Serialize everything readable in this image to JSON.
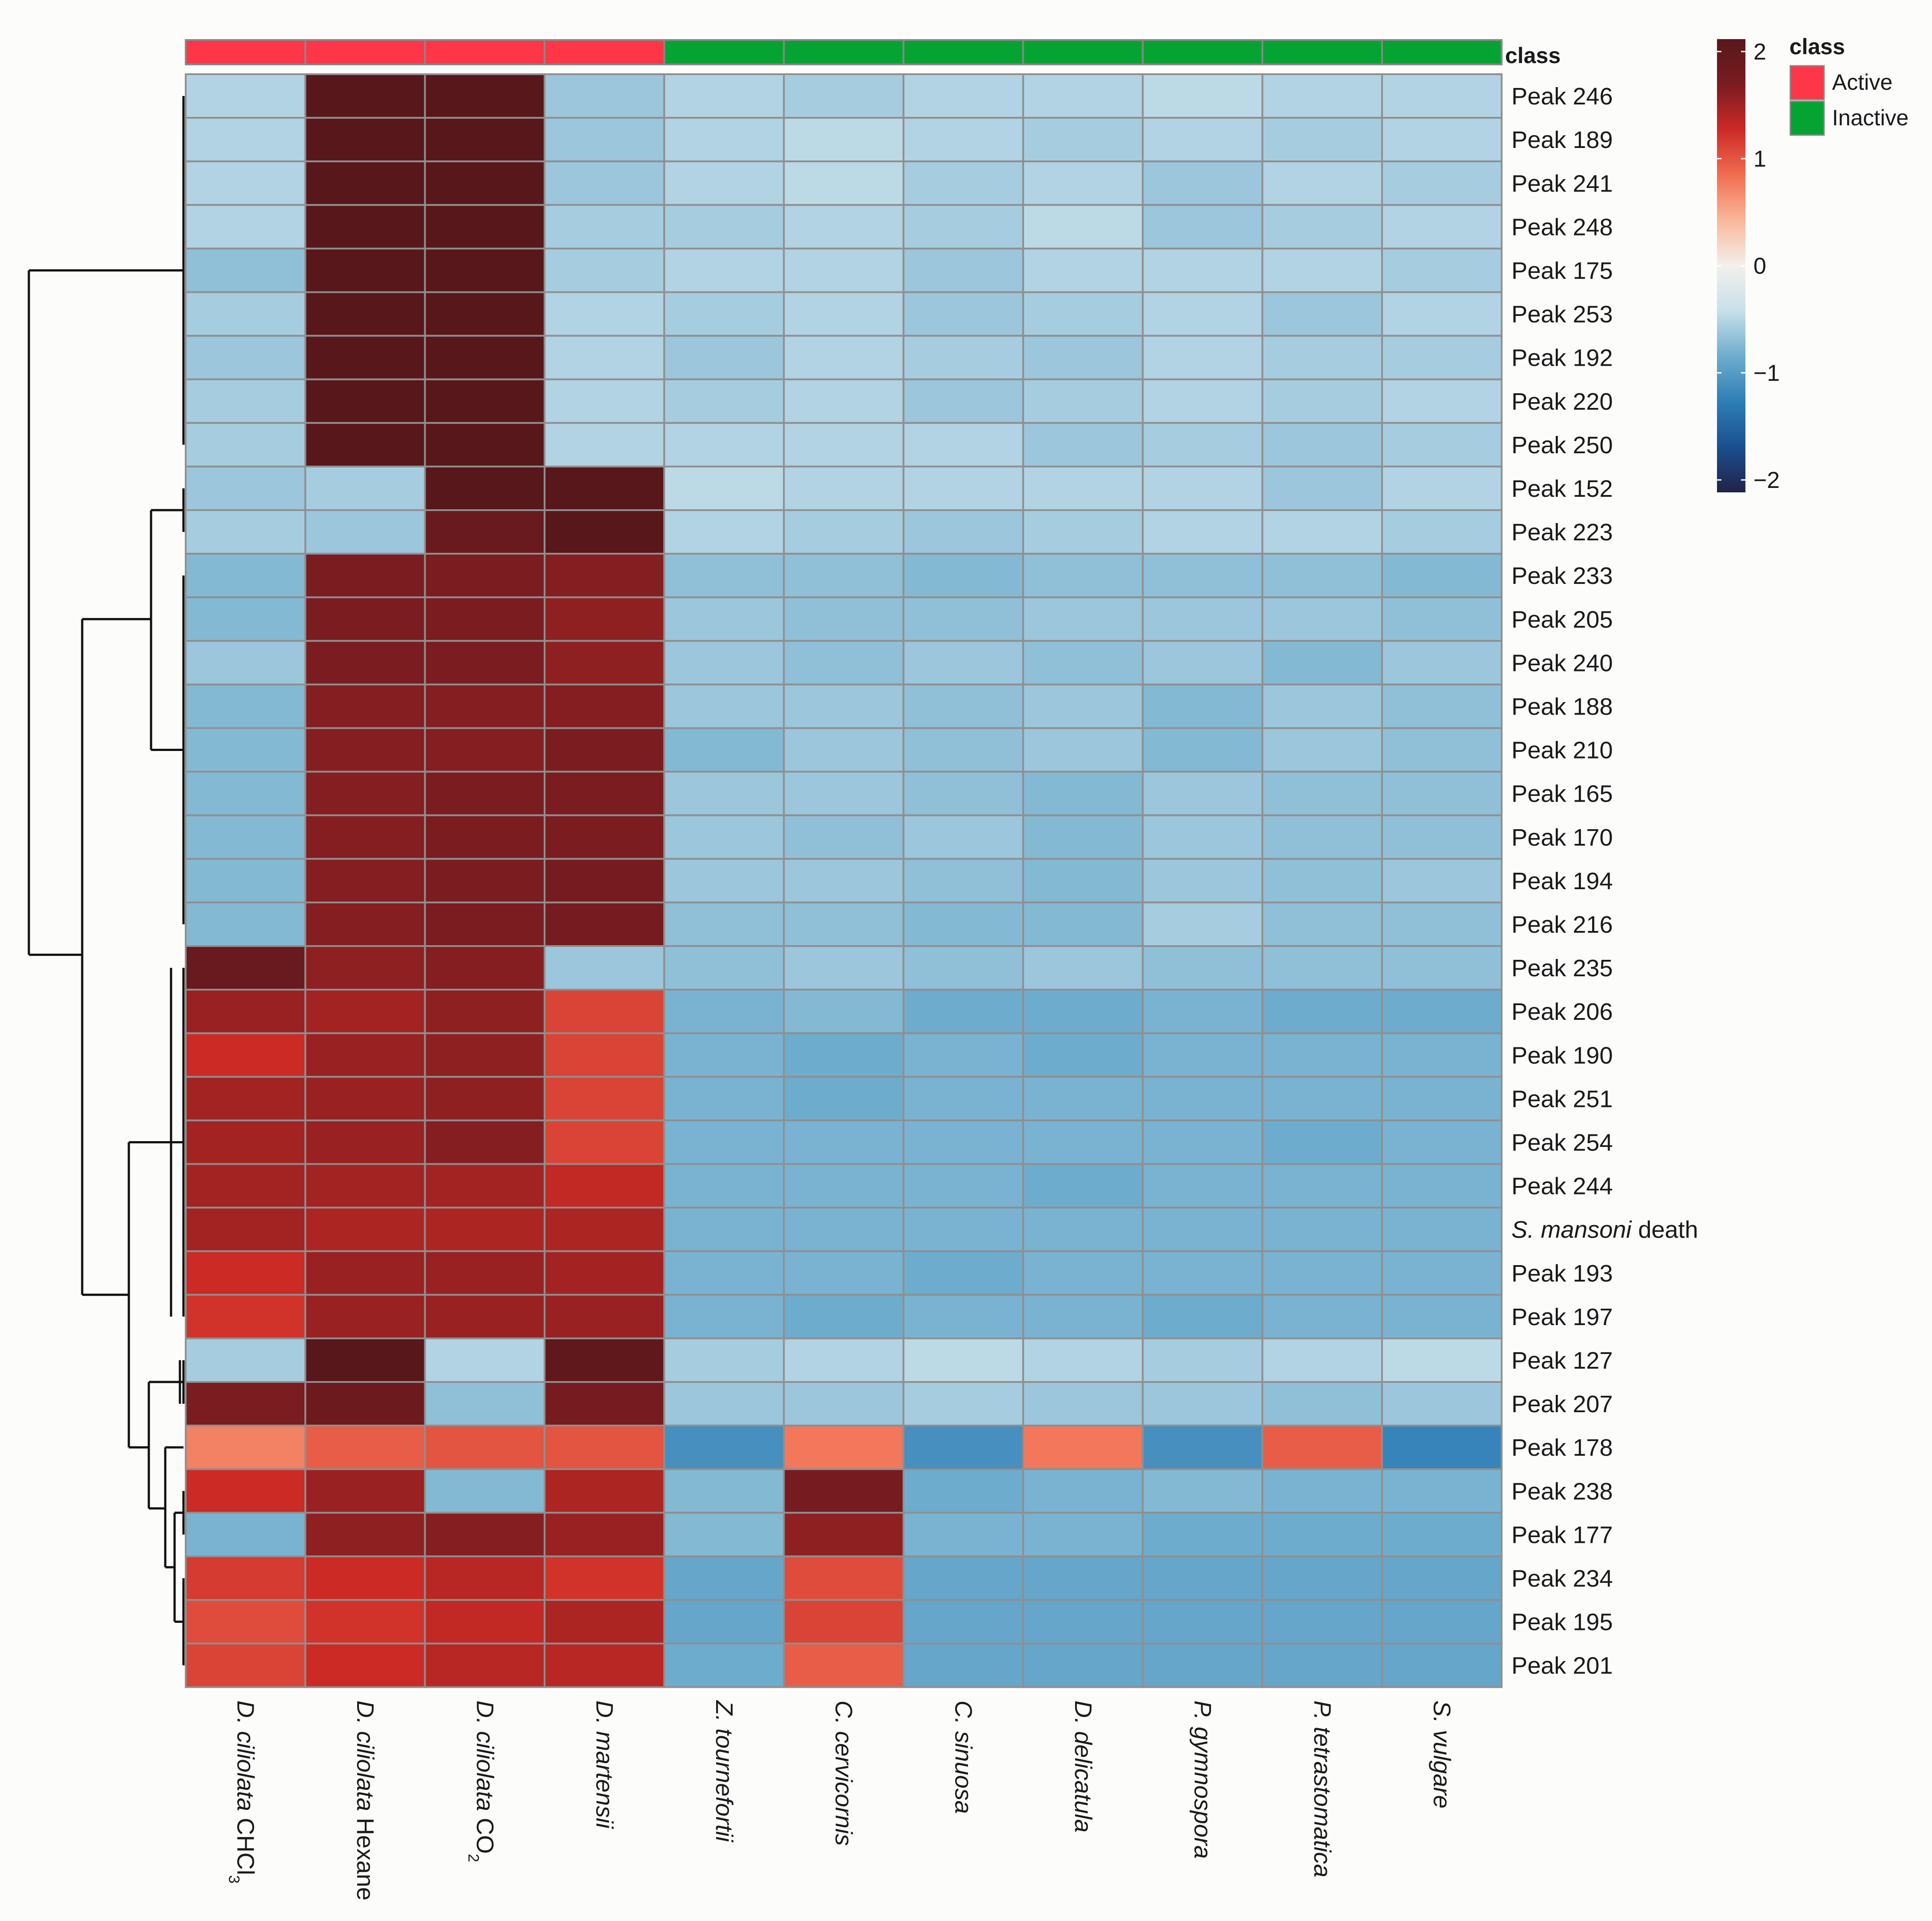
{
  "chart_data": {
    "type": "heatmap",
    "title": "",
    "class_row_label": "class",
    "class_legend": {
      "title": "class",
      "entries": [
        {
          "label": "Active",
          "color": "#ff3548"
        },
        {
          "label": "Inactive",
          "color": "#05a432"
        }
      ]
    },
    "color_scale": {
      "min": -2,
      "max": 2,
      "ticks": [
        {
          "value": 2,
          "label": "2"
        },
        {
          "value": 1,
          "label": "1"
        },
        {
          "value": 0,
          "label": "0"
        },
        {
          "value": -1,
          "label": "−1"
        },
        {
          "value": -2,
          "label": "−2"
        }
      ],
      "colors": [
        "#212247",
        "#1b4f90",
        "#2e7eb6",
        "#6eaccd",
        "#c7e0ea",
        "#f3f0ec",
        "#f9b89a",
        "#f16e52",
        "#cc2a25",
        "#7a1c20",
        "#58171b"
      ]
    },
    "columns": [
      {
        "parts": [
          {
            "text": "D. ciliolata",
            "italic": true
          },
          {
            "text": " CHCl",
            "italic": false
          },
          {
            "text": "3",
            "italic": false,
            "sub": true
          }
        ],
        "class": "Active"
      },
      {
        "parts": [
          {
            "text": "D. ciliolata",
            "italic": true
          },
          {
            "text": " Hexane",
            "italic": false
          }
        ],
        "class": "Active"
      },
      {
        "parts": [
          {
            "text": "D. ciliolata",
            "italic": true
          },
          {
            "text": " CO",
            "italic": false
          },
          {
            "text": "2",
            "italic": false,
            "sub": true
          }
        ],
        "class": "Active"
      },
      {
        "parts": [
          {
            "text": "D. martensii",
            "italic": true
          }
        ],
        "class": "Active"
      },
      {
        "parts": [
          {
            "text": "Z. tournefortii",
            "italic": true
          }
        ],
        "class": "Inactive"
      },
      {
        "parts": [
          {
            "text": "C. cervicornis",
            "italic": true
          }
        ],
        "class": "Inactive"
      },
      {
        "parts": [
          {
            "text": "C. sinuosa",
            "italic": true
          }
        ],
        "class": "Inactive"
      },
      {
        "parts": [
          {
            "text": "D. delicatula",
            "italic": true
          }
        ],
        "class": "Inactive"
      },
      {
        "parts": [
          {
            "text": "P. gymnospora",
            "italic": true
          }
        ],
        "class": "Inactive"
      },
      {
        "parts": [
          {
            "text": "P. tetrastomatica",
            "italic": true
          }
        ],
        "class": "Inactive"
      },
      {
        "parts": [
          {
            "text": "S. vulgare",
            "italic": true
          }
        ],
        "class": "Inactive"
      }
    ],
    "rows": [
      {
        "parts": [
          {
            "text": "Peak 246"
          }
        ],
        "values": [
          -0.5,
          2.0,
          2.2,
          -0.6,
          -0.5,
          -0.55,
          -0.5,
          -0.5,
          -0.45,
          -0.5,
          -0.5
        ]
      },
      {
        "parts": [
          {
            "text": "Peak 189"
          }
        ],
        "values": [
          -0.5,
          2.0,
          2.2,
          -0.6,
          -0.5,
          -0.45,
          -0.5,
          -0.55,
          -0.5,
          -0.55,
          -0.5
        ]
      },
      {
        "parts": [
          {
            "text": "Peak 241"
          }
        ],
        "values": [
          -0.5,
          2.0,
          2.2,
          -0.6,
          -0.5,
          -0.45,
          -0.55,
          -0.5,
          -0.6,
          -0.5,
          -0.55
        ]
      },
      {
        "parts": [
          {
            "text": "Peak 248"
          }
        ],
        "values": [
          -0.5,
          2.0,
          2.2,
          -0.55,
          -0.55,
          -0.5,
          -0.55,
          -0.45,
          -0.6,
          -0.55,
          -0.5
        ]
      },
      {
        "parts": [
          {
            "text": "Peak 175"
          }
        ],
        "values": [
          -0.65,
          2.0,
          2.2,
          -0.55,
          -0.5,
          -0.5,
          -0.6,
          -0.5,
          -0.5,
          -0.5,
          -0.55
        ]
      },
      {
        "parts": [
          {
            "text": "Peak 253"
          }
        ],
        "values": [
          -0.55,
          2.1,
          2.2,
          -0.5,
          -0.55,
          -0.5,
          -0.6,
          -0.55,
          -0.5,
          -0.6,
          -0.5
        ]
      },
      {
        "parts": [
          {
            "text": "Peak 192"
          }
        ],
        "values": [
          -0.6,
          2.1,
          2.2,
          -0.5,
          -0.6,
          -0.5,
          -0.55,
          -0.6,
          -0.5,
          -0.55,
          -0.55
        ]
      },
      {
        "parts": [
          {
            "text": "Peak 220"
          }
        ],
        "values": [
          -0.55,
          2.1,
          2.0,
          -0.5,
          -0.55,
          -0.5,
          -0.6,
          -0.55,
          -0.5,
          -0.55,
          -0.5
        ]
      },
      {
        "parts": [
          {
            "text": "Peak 250"
          }
        ],
        "values": [
          -0.55,
          2.1,
          2.1,
          -0.5,
          -0.5,
          -0.5,
          -0.5,
          -0.6,
          -0.55,
          -0.6,
          -0.55
        ]
      },
      {
        "parts": [
          {
            "text": "Peak 152"
          }
        ],
        "values": [
          -0.6,
          -0.55,
          2.1,
          2.1,
          -0.45,
          -0.5,
          -0.5,
          -0.5,
          -0.5,
          -0.6,
          -0.5
        ]
      },
      {
        "parts": [
          {
            "text": "Peak 223"
          }
        ],
        "values": [
          -0.55,
          -0.6,
          1.8,
          2.3,
          -0.5,
          -0.55,
          -0.6,
          -0.55,
          -0.5,
          -0.5,
          -0.55
        ]
      },
      {
        "parts": [
          {
            "text": "Peak 233"
          }
        ],
        "values": [
          -0.7,
          1.6,
          1.6,
          1.55,
          -0.65,
          -0.65,
          -0.7,
          -0.65,
          -0.65,
          -0.65,
          -0.7
        ]
      },
      {
        "parts": [
          {
            "text": "Peak 205"
          }
        ],
        "values": [
          -0.7,
          1.6,
          1.6,
          1.5,
          -0.6,
          -0.65,
          -0.65,
          -0.6,
          -0.6,
          -0.6,
          -0.65
        ]
      },
      {
        "parts": [
          {
            "text": "Peak 240"
          }
        ],
        "values": [
          -0.6,
          1.6,
          1.6,
          1.5,
          -0.6,
          -0.65,
          -0.6,
          -0.65,
          -0.6,
          -0.7,
          -0.6
        ]
      },
      {
        "parts": [
          {
            "text": "Peak 188"
          }
        ],
        "values": [
          -0.7,
          1.55,
          1.55,
          1.55,
          -0.6,
          -0.6,
          -0.65,
          -0.6,
          -0.7,
          -0.6,
          -0.65
        ]
      },
      {
        "parts": [
          {
            "text": "Peak 210"
          }
        ],
        "values": [
          -0.7,
          1.55,
          1.55,
          1.6,
          -0.7,
          -0.6,
          -0.65,
          -0.6,
          -0.7,
          -0.6,
          -0.65
        ]
      },
      {
        "parts": [
          {
            "text": "Peak 165"
          }
        ],
        "values": [
          -0.7,
          1.55,
          1.6,
          1.6,
          -0.6,
          -0.6,
          -0.65,
          -0.7,
          -0.6,
          -0.65,
          -0.65
        ]
      },
      {
        "parts": [
          {
            "text": "Peak 170"
          }
        ],
        "values": [
          -0.7,
          1.55,
          1.6,
          1.6,
          -0.6,
          -0.65,
          -0.6,
          -0.7,
          -0.6,
          -0.65,
          -0.65
        ]
      },
      {
        "parts": [
          {
            "text": "Peak 194"
          }
        ],
        "values": [
          -0.7,
          1.55,
          1.6,
          1.65,
          -0.6,
          -0.6,
          -0.65,
          -0.7,
          -0.6,
          -0.65,
          -0.6
        ]
      },
      {
        "parts": [
          {
            "text": "Peak 216"
          }
        ],
        "values": [
          -0.7,
          1.55,
          1.6,
          1.65,
          -0.65,
          -0.65,
          -0.7,
          -0.7,
          -0.55,
          -0.65,
          -0.65
        ]
      },
      {
        "parts": [
          {
            "text": "Peak 235"
          }
        ],
        "values": [
          1.8,
          1.5,
          1.55,
          -0.6,
          -0.65,
          -0.6,
          -0.65,
          -0.6,
          -0.65,
          -0.65,
          -0.65
        ]
      },
      {
        "parts": [
          {
            "text": "Peak 206"
          }
        ],
        "values": [
          1.45,
          1.4,
          1.5,
          1.05,
          -0.75,
          -0.7,
          -0.8,
          -0.8,
          -0.75,
          -0.8,
          -0.8
        ]
      },
      {
        "parts": [
          {
            "text": "Peak 190"
          }
        ],
        "values": [
          1.2,
          1.45,
          1.5,
          1.05,
          -0.75,
          -0.8,
          -0.75,
          -0.8,
          -0.75,
          -0.75,
          -0.75
        ]
      },
      {
        "parts": [
          {
            "text": "Peak 251"
          }
        ],
        "values": [
          1.4,
          1.45,
          1.5,
          1.05,
          -0.75,
          -0.8,
          -0.75,
          -0.75,
          -0.75,
          -0.75,
          -0.75
        ]
      },
      {
        "parts": [
          {
            "text": "Peak 254"
          }
        ],
        "values": [
          1.4,
          1.45,
          1.55,
          1.05,
          -0.75,
          -0.75,
          -0.75,
          -0.75,
          -0.75,
          -0.8,
          -0.75
        ]
      },
      {
        "parts": [
          {
            "text": "Peak 244"
          }
        ],
        "values": [
          1.4,
          1.4,
          1.4,
          1.25,
          -0.75,
          -0.75,
          -0.75,
          -0.8,
          -0.75,
          -0.75,
          -0.75
        ]
      },
      {
        "parts": [
          {
            "text": "S. mansoni",
            "italic": true
          },
          {
            "text": " death"
          }
        ],
        "values": [
          1.4,
          1.35,
          1.35,
          1.35,
          -0.75,
          -0.75,
          -0.75,
          -0.75,
          -0.75,
          -0.75,
          -0.75
        ]
      },
      {
        "parts": [
          {
            "text": "Peak 193"
          }
        ],
        "values": [
          1.2,
          1.45,
          1.45,
          1.4,
          -0.75,
          -0.75,
          -0.8,
          -0.75,
          -0.75,
          -0.75,
          -0.75
        ]
      },
      {
        "parts": [
          {
            "text": "Peak 197"
          }
        ],
        "values": [
          1.15,
          1.45,
          1.45,
          1.45,
          -0.75,
          -0.8,
          -0.75,
          -0.75,
          -0.8,
          -0.75,
          -0.75
        ]
      },
      {
        "parts": [
          {
            "text": "Peak 127"
          }
        ],
        "values": [
          -0.55,
          2.3,
          -0.5,
          1.9,
          -0.55,
          -0.5,
          -0.45,
          -0.5,
          -0.55,
          -0.5,
          -0.45
        ]
      },
      {
        "parts": [
          {
            "text": "Peak 207"
          }
        ],
        "values": [
          1.6,
          1.75,
          -0.65,
          1.65,
          -0.6,
          -0.6,
          -0.55,
          -0.6,
          -0.6,
          -0.65,
          -0.6
        ]
      },
      {
        "parts": [
          {
            "text": "Peak 178"
          }
        ],
        "values": [
          0.7,
          0.9,
          0.95,
          0.95,
          -1.05,
          0.75,
          -1.05,
          0.75,
          -1.05,
          0.9,
          -1.15
        ]
      },
      {
        "parts": [
          {
            "text": "Peak 238"
          }
        ],
        "values": [
          1.2,
          1.45,
          -0.7,
          1.35,
          -0.7,
          1.65,
          -0.8,
          -0.75,
          -0.7,
          -0.75,
          -0.75
        ]
      },
      {
        "parts": [
          {
            "text": "Peak 177"
          }
        ],
        "values": [
          -0.75,
          1.5,
          1.55,
          1.45,
          -0.7,
          1.5,
          -0.75,
          -0.75,
          -0.8,
          -0.8,
          -0.8
        ]
      },
      {
        "parts": [
          {
            "text": "Peak 234"
          }
        ],
        "values": [
          1.1,
          1.2,
          1.3,
          1.15,
          -0.85,
          1.0,
          -0.85,
          -0.85,
          -0.85,
          -0.85,
          -0.85
        ]
      },
      {
        "parts": [
          {
            "text": "Peak 195"
          }
        ],
        "values": [
          1.0,
          1.15,
          1.25,
          1.35,
          -0.85,
          1.05,
          -0.85,
          -0.85,
          -0.85,
          -0.85,
          -0.85
        ]
      },
      {
        "parts": [
          {
            "text": "Peak 201"
          }
        ],
        "values": [
          1.05,
          1.2,
          1.3,
          1.3,
          -0.8,
          0.9,
          -0.85,
          -0.85,
          -0.85,
          -0.85,
          -0.85
        ]
      }
    ]
  }
}
